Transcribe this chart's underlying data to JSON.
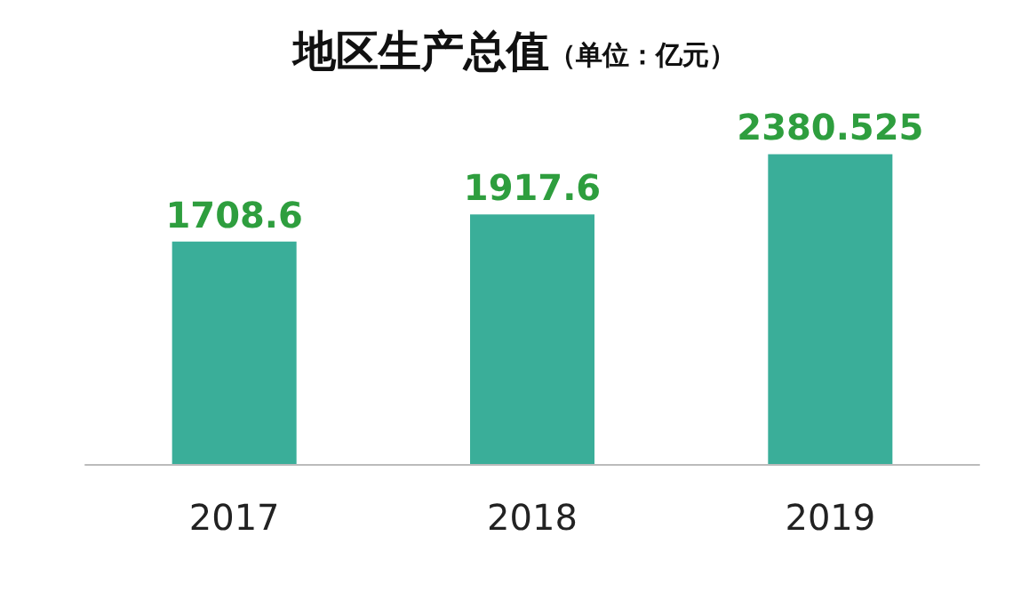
{
  "chart_data": {
    "type": "bar",
    "title": "地区生产总值",
    "subtitle": "（单位：亿元）",
    "categories": [
      "2017",
      "2018",
      "2019"
    ],
    "values": [
      1708.6,
      1917.6,
      2380.525
    ],
    "color": "#3aae99",
    "data_labels": true
  }
}
